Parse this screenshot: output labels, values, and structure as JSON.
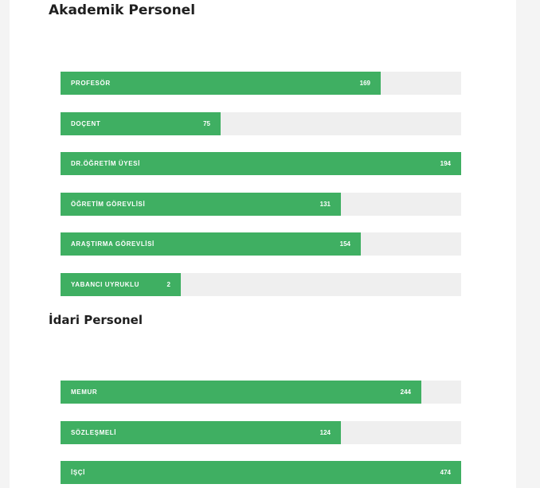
{
  "colors": {
    "fill": "#3faf62",
    "track": "#efefef"
  },
  "chart_data": [
    {
      "type": "bar",
      "orientation": "horizontal",
      "title": "Akademik Personel",
      "scale_max": 194,
      "categories": [
        "PROFESÖR",
        "DOÇENT",
        "DR.ÖĞRETİM ÜYESİ",
        "ÖĞRETİM GÖREVLİSİ",
        "ARAŞTIRMA GÖREVLİSİ",
        "YABANCI UYRUKLU"
      ],
      "values": [
        169,
        75,
        194,
        131,
        154,
        2
      ],
      "fill_fractions": [
        0.8,
        0.4,
        1.0,
        0.7,
        0.75,
        0.3
      ]
    },
    {
      "type": "bar",
      "orientation": "horizontal",
      "title": "İdari Personel",
      "scale_max": 474,
      "categories": [
        "MEMUR",
        "SÖZLEŞMELİ",
        "İŞÇİ"
      ],
      "values": [
        244,
        124,
        474
      ],
      "fill_fractions": [
        0.9,
        0.7,
        1.0
      ]
    }
  ]
}
